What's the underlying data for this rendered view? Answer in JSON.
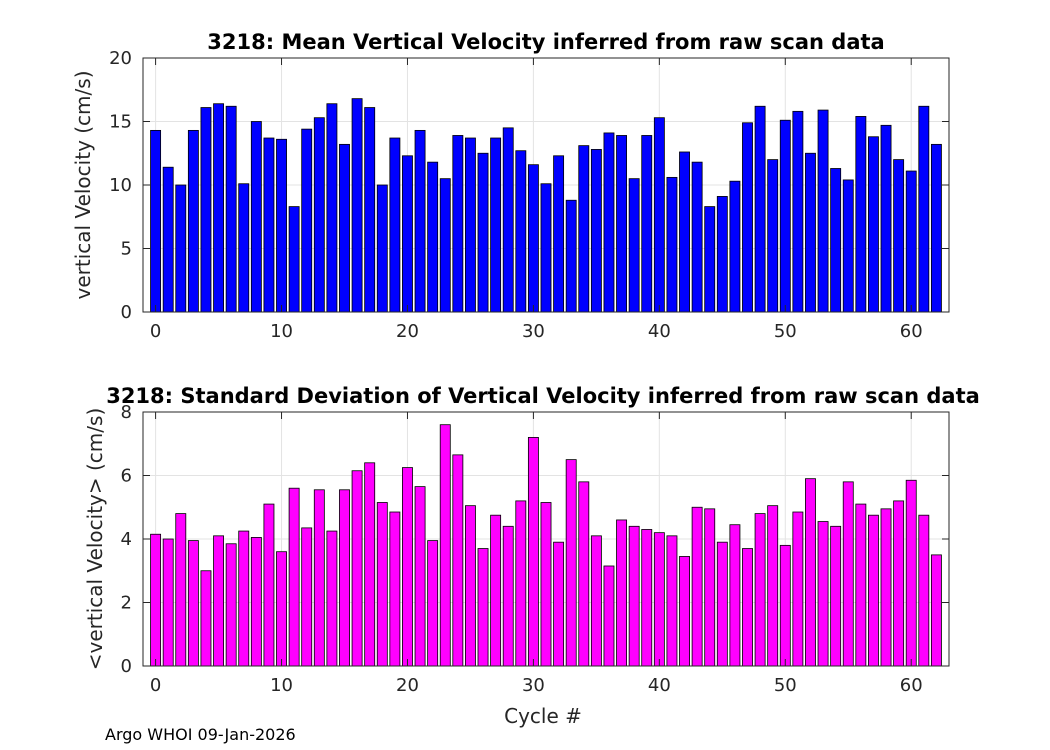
{
  "chart_data": [
    {
      "type": "bar",
      "title": "3218: Mean Vertical Velocity inferred from raw scan data",
      "xlabel": "",
      "ylabel": "vertical Velocity (cm/s)",
      "xlim": [
        -1,
        63
      ],
      "ylim": [
        0,
        20
      ],
      "xticks": [
        0,
        10,
        20,
        30,
        40,
        50,
        60
      ],
      "yticks": [
        0,
        5,
        10,
        15,
        20
      ],
      "grid": true,
      "bar_color": "#0000ff",
      "x": [
        0,
        1,
        2,
        3,
        4,
        5,
        6,
        7,
        8,
        9,
        10,
        11,
        12,
        13,
        14,
        15,
        16,
        17,
        18,
        19,
        20,
        21,
        22,
        23,
        24,
        25,
        26,
        27,
        28,
        29,
        30,
        31,
        32,
        33,
        34,
        35,
        36,
        37,
        38,
        39,
        40,
        41,
        42,
        43,
        44,
        45,
        46,
        47,
        48,
        49,
        50,
        51,
        52,
        53,
        54,
        55,
        56,
        57,
        58,
        59,
        60,
        61,
        62
      ],
      "values": [
        14.3,
        11.4,
        10.0,
        14.3,
        16.1,
        16.4,
        16.2,
        10.1,
        15.0,
        13.7,
        13.6,
        8.3,
        14.4,
        15.3,
        16.4,
        13.2,
        16.8,
        16.1,
        10.0,
        13.7,
        12.3,
        14.3,
        11.8,
        10.5,
        13.9,
        13.7,
        12.5,
        13.7,
        14.5,
        12.7,
        11.6,
        10.1,
        12.3,
        8.8,
        13.1,
        12.8,
        14.1,
        13.9,
        10.5,
        13.9,
        15.3,
        10.6,
        12.6,
        11.8,
        8.3,
        9.1,
        10.3,
        14.9,
        16.2,
        12.0,
        15.1,
        15.8,
        12.5,
        15.9,
        11.3,
        10.4,
        15.4,
        13.8,
        14.7,
        12.0,
        11.1,
        16.2,
        13.2
      ]
    },
    {
      "type": "bar",
      "title": "3218: Standard Deviation of Vertical Velocity inferred from raw scan data",
      "xlabel": "Cycle #",
      "ylabel": "<vertical Velocity> (cm/s)",
      "xlim": [
        -1,
        63
      ],
      "ylim": [
        0,
        8
      ],
      "xticks": [
        0,
        10,
        20,
        30,
        40,
        50,
        60
      ],
      "yticks": [
        0,
        2,
        4,
        6,
        8
      ],
      "grid": true,
      "bar_color": "#ff00ff",
      "x": [
        0,
        1,
        2,
        3,
        4,
        5,
        6,
        7,
        8,
        9,
        10,
        11,
        12,
        13,
        14,
        15,
        16,
        17,
        18,
        19,
        20,
        21,
        22,
        23,
        24,
        25,
        26,
        27,
        28,
        29,
        30,
        31,
        32,
        33,
        34,
        35,
        36,
        37,
        38,
        39,
        40,
        41,
        42,
        43,
        44,
        45,
        46,
        47,
        48,
        49,
        50,
        51,
        52,
        53,
        54,
        55,
        56,
        57,
        58,
        59,
        60,
        61,
        62
      ],
      "values": [
        4.15,
        4.0,
        4.8,
        3.95,
        3.0,
        4.1,
        3.85,
        4.25,
        4.05,
        5.1,
        3.6,
        5.6,
        4.35,
        5.55,
        4.25,
        5.55,
        6.15,
        6.4,
        5.15,
        4.85,
        6.25,
        5.65,
        3.95,
        7.6,
        6.65,
        5.05,
        3.7,
        4.75,
        4.4,
        5.2,
        7.2,
        5.15,
        3.9,
        6.5,
        5.8,
        4.1,
        3.15,
        4.6,
        4.4,
        4.3,
        4.2,
        4.1,
        3.45,
        5.0,
        4.95,
        3.9,
        4.45,
        3.7,
        4.8,
        5.05,
        3.8,
        4.85,
        5.9,
        4.55,
        4.4,
        5.8,
        5.1,
        4.75,
        4.95,
        5.2,
        5.85,
        4.75,
        3.5
      ]
    }
  ],
  "footer": {
    "text": "Argo WHOI 09-Jan-2026"
  }
}
